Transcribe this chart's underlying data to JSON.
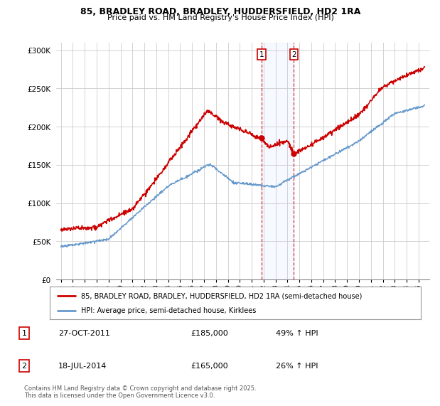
{
  "title_line1": "85, BRADLEY ROAD, BRADLEY, HUDDERSFIELD, HD2 1RA",
  "title_line2": "Price paid vs. HM Land Registry's House Price Index (HPI)",
  "ylim": [
    0,
    310000
  ],
  "yticks": [
    0,
    50000,
    100000,
    150000,
    200000,
    250000,
    300000
  ],
  "ytick_labels": [
    "£0",
    "£50K",
    "£100K",
    "£150K",
    "£200K",
    "£250K",
    "£300K"
  ],
  "annotation1": {
    "label": "1",
    "date": "27-OCT-2011",
    "price": "£185,000",
    "hpi": "49% ↑ HPI",
    "x_year": 2011.82,
    "y_val": 185000
  },
  "annotation2": {
    "label": "2",
    "date": "18-JUL-2014",
    "price": "£165,000",
    "hpi": "26% ↑ HPI",
    "x_year": 2014.54,
    "y_val": 165000
  },
  "legend_entry1": "85, BRADLEY ROAD, BRADLEY, HUDDERSFIELD, HD2 1RA (semi-detached house)",
  "legend_entry2": "HPI: Average price, semi-detached house, Kirklees",
  "footer": "Contains HM Land Registry data © Crown copyright and database right 2025.\nThis data is licensed under the Open Government Licence v3.0.",
  "red_color": "#cc0000",
  "blue_color": "#6699cc",
  "bg_color": "#ffffff",
  "grid_color": "#cccccc",
  "xtick_years": [
    1995,
    1996,
    1997,
    1998,
    1999,
    2000,
    2001,
    2002,
    2003,
    2004,
    2005,
    2006,
    2007,
    2008,
    2009,
    2010,
    2011,
    2012,
    2013,
    2014,
    2015,
    2016,
    2017,
    2018,
    2019,
    2020,
    2021,
    2022,
    2023,
    2024,
    2025
  ]
}
